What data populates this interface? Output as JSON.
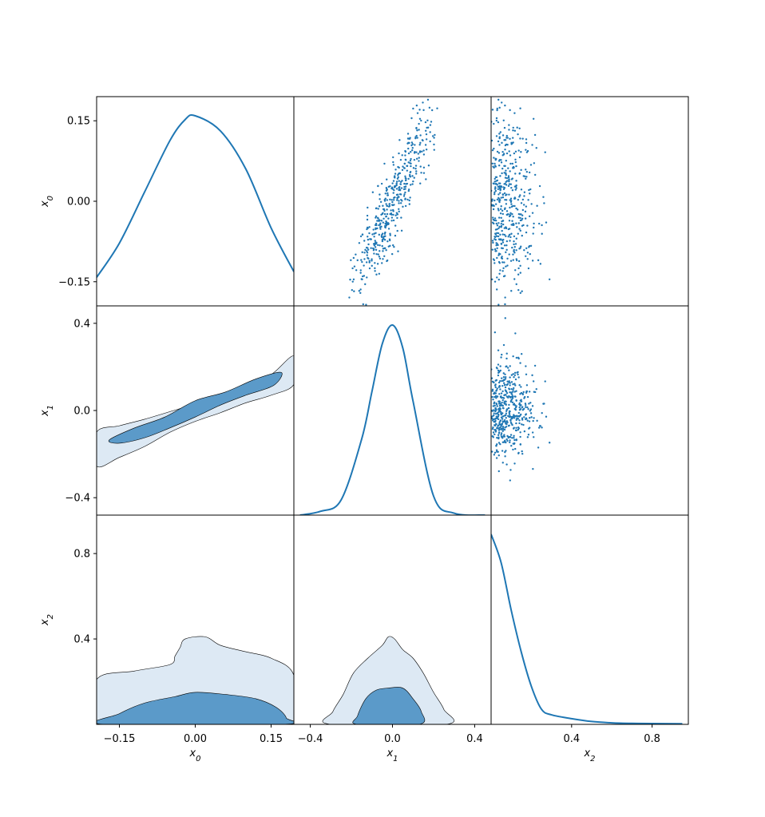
{
  "colors": {
    "line": "#1f77b4",
    "fill_inner": "#5b9ac9",
    "fill_outer": "#dde9f4",
    "frame": "#000000",
    "background": "#ffffff"
  },
  "chart_data": {
    "type": "corner",
    "variables": [
      "x0",
      "x1",
      "x2"
    ],
    "axis_labels": {
      "x0": {
        "base": "x",
        "sub": "0"
      },
      "x1": {
        "base": "x",
        "sub": "1"
      },
      "x2": {
        "base": "x",
        "sub": "2"
      }
    },
    "ranges": {
      "x0": [
        -0.195,
        0.195
      ],
      "x1": [
        -0.48,
        0.48
      ],
      "x2": [
        0.0,
        0.98
      ]
    },
    "ticks": {
      "x0": {
        "values": [
          -0.15,
          0.0,
          0.15
        ],
        "labels": [
          "−0.15",
          "0.00",
          "0.15"
        ]
      },
      "x1": {
        "values": [
          -0.4,
          0.0,
          0.4
        ],
        "labels": [
          "−0.4",
          "0.0",
          "0.4"
        ]
      },
      "x2": {
        "values": [
          0.4,
          0.8
        ],
        "labels": [
          "0.4",
          "0.8"
        ]
      }
    },
    "marginals": {
      "x0": {
        "x": [
          -0.195,
          -0.15,
          -0.1,
          -0.05,
          -0.02,
          0.0,
          0.05,
          0.1,
          0.15,
          0.195
        ],
        "density": [
          0.15,
          0.33,
          0.6,
          0.87,
          0.98,
          1.0,
          0.92,
          0.72,
          0.41,
          0.18
        ]
      },
      "x1": {
        "x": [
          -0.45,
          -0.35,
          -0.25,
          -0.15,
          -0.1,
          -0.05,
          0.0,
          0.05,
          0.1,
          0.2,
          0.3,
          0.45
        ],
        "density": [
          0.0,
          0.02,
          0.08,
          0.4,
          0.65,
          0.9,
          1.0,
          0.88,
          0.6,
          0.1,
          0.01,
          0.0
        ]
      },
      "x2": {
        "x": [
          0.0,
          0.05,
          0.1,
          0.15,
          0.2,
          0.25,
          0.3,
          0.4,
          0.5,
          0.6,
          0.7,
          0.8,
          0.95
        ],
        "density": [
          1.0,
          0.85,
          0.6,
          0.38,
          0.2,
          0.08,
          0.05,
          0.03,
          0.015,
          0.008,
          0.005,
          0.004,
          0.003
        ]
      }
    },
    "contours_x1_x0": {
      "outer": [
        [
          -0.195,
          -0.1
        ],
        [
          -0.15,
          -0.07
        ],
        [
          -0.1,
          -0.04
        ],
        [
          -0.05,
          -0.005
        ],
        [
          0.0,
          0.03
        ],
        [
          0.05,
          0.07
        ],
        [
          0.1,
          0.12
        ],
        [
          0.15,
          0.165
        ],
        [
          0.195,
          0.25
        ],
        [
          0.195,
          0.12
        ],
        [
          0.15,
          0.07
        ],
        [
          0.1,
          0.035
        ],
        [
          0.05,
          -0.01
        ],
        [
          0.0,
          -0.05
        ],
        [
          -0.05,
          -0.1
        ],
        [
          -0.1,
          -0.165
        ],
        [
          -0.15,
          -0.215
        ],
        [
          -0.195,
          -0.255
        ]
      ],
      "inner": [
        [
          -0.17,
          -0.135
        ],
        [
          -0.12,
          -0.08
        ],
        [
          -0.06,
          -0.03
        ],
        [
          0.0,
          0.045
        ],
        [
          0.06,
          0.085
        ],
        [
          0.12,
          0.145
        ],
        [
          0.17,
          0.175
        ],
        [
          0.155,
          0.115
        ],
        [
          0.1,
          0.07
        ],
        [
          0.05,
          0.025
        ],
        [
          0.0,
          -0.03
        ],
        [
          -0.05,
          -0.08
        ],
        [
          -0.1,
          -0.125
        ],
        [
          -0.15,
          -0.15
        ]
      ]
    },
    "contours_x0_x2": {
      "outer": [
        [
          -0.195,
          0.0
        ],
        [
          -0.195,
          0.21
        ],
        [
          -0.12,
          0.25
        ],
        [
          -0.05,
          0.28
        ],
        [
          -0.04,
          0.32
        ],
        [
          -0.03,
          0.36
        ],
        [
          -0.02,
          0.4
        ],
        [
          0.02,
          0.41
        ],
        [
          0.05,
          0.37
        ],
        [
          0.1,
          0.34
        ],
        [
          0.15,
          0.31
        ],
        [
          0.195,
          0.23
        ],
        [
          0.195,
          0.0
        ]
      ],
      "inner": [
        [
          -0.18,
          0.0
        ],
        [
          -0.15,
          0.05
        ],
        [
          -0.1,
          0.1
        ],
        [
          -0.04,
          0.13
        ],
        [
          0.0,
          0.15
        ],
        [
          0.06,
          0.14
        ],
        [
          0.12,
          0.12
        ],
        [
          0.16,
          0.08
        ],
        [
          0.18,
          0.03
        ],
        [
          0.17,
          0.0
        ]
      ]
    },
    "contours_x1_x2": {
      "outer": [
        [
          -0.3,
          0.0
        ],
        [
          -0.29,
          0.06
        ],
        [
          -0.24,
          0.14
        ],
        [
          -0.19,
          0.24
        ],
        [
          -0.12,
          0.31
        ],
        [
          -0.05,
          0.37
        ],
        [
          -0.02,
          0.41
        ],
        [
          0.01,
          0.4
        ],
        [
          0.05,
          0.35
        ],
        [
          0.1,
          0.31
        ],
        [
          0.15,
          0.24
        ],
        [
          0.2,
          0.15
        ],
        [
          0.25,
          0.07
        ],
        [
          0.26,
          0.0
        ]
      ],
      "inner": [
        [
          -0.17,
          0.0
        ],
        [
          -0.17,
          0.04
        ],
        [
          -0.13,
          0.12
        ],
        [
          -0.08,
          0.16
        ],
        [
          -0.02,
          0.17
        ],
        [
          0.05,
          0.17
        ],
        [
          0.1,
          0.12
        ],
        [
          0.14,
          0.06
        ],
        [
          0.13,
          0.0
        ]
      ]
    },
    "scatter_seed": 7,
    "scatter_points": 500
  }
}
